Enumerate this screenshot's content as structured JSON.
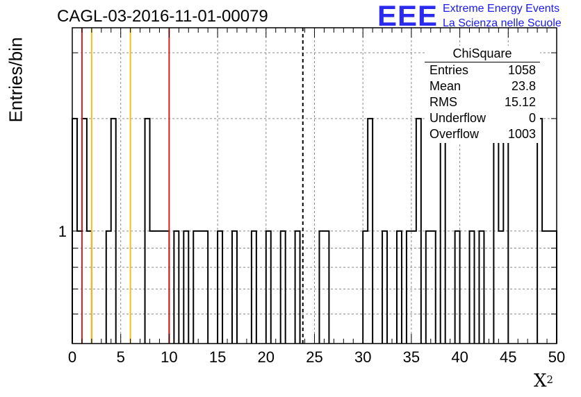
{
  "header": {
    "title": "CAGL-03-2016-11-01-00079",
    "logo_mark": "EEE",
    "logo_line1": "Extreme Energy Events",
    "logo_line2": "La Scienza nelle Scuole"
  },
  "stats": {
    "title": "ChiSquare",
    "rows": [
      {
        "label": "Entries",
        "value": "1058"
      },
      {
        "label": "Mean",
        "value": "23.8"
      },
      {
        "label": "RMS",
        "value": "15.12"
      },
      {
        "label": "Underflow",
        "value": "0"
      },
      {
        "label": "Overflow",
        "value": "1003"
      }
    ]
  },
  "colors": {
    "histogram": "#000000",
    "red_lines": "#d62020",
    "yellow_lines": "#f2c21b",
    "mean_line": "#000000",
    "logo": "#1a1af0"
  },
  "chart_data": {
    "type": "bar",
    "title": "CAGL-03-2016-11-01-00079",
    "xlabel": "X",
    "xlabel_superscript": "2",
    "ylabel": "Entries/bin",
    "xlim": [
      0,
      50
    ],
    "ylim": [
      0.5,
      3.5
    ],
    "log_y": true,
    "grid": true,
    "x_ticks": [
      "0",
      "5",
      "10",
      "15",
      "20",
      "25",
      "30",
      "35",
      "40",
      "45",
      "50"
    ],
    "y_ticks": [
      "1"
    ],
    "bin_width": 0.5,
    "bins": [
      {
        "x": 0.0,
        "v": 2
      },
      {
        "x": 0.5,
        "v": 1
      },
      {
        "x": 1.0,
        "v": 2
      },
      {
        "x": 1.5,
        "v": 1
      },
      {
        "x": 3.5,
        "v": 1
      },
      {
        "x": 4.0,
        "v": 2
      },
      {
        "x": 7.5,
        "v": 2
      },
      {
        "x": 8.0,
        "v": 1
      },
      {
        "x": 8.5,
        "v": 1
      },
      {
        "x": 9.0,
        "v": 1
      },
      {
        "x": 9.5,
        "v": 1
      },
      {
        "x": 10.5,
        "v": 1
      },
      {
        "x": 11.5,
        "v": 1
      },
      {
        "x": 12.5,
        "v": 1
      },
      {
        "x": 13.0,
        "v": 1
      },
      {
        "x": 13.5,
        "v": 1
      },
      {
        "x": 15.0,
        "v": 1
      },
      {
        "x": 16.5,
        "v": 1
      },
      {
        "x": 18.5,
        "v": 1
      },
      {
        "x": 20.0,
        "v": 1
      },
      {
        "x": 21.5,
        "v": 1
      },
      {
        "x": 23.0,
        "v": 1
      },
      {
        "x": 25.5,
        "v": 1
      },
      {
        "x": 26.0,
        "v": 1
      },
      {
        "x": 30.0,
        "v": 1
      },
      {
        "x": 30.5,
        "v": 2
      },
      {
        "x": 32.0,
        "v": 1
      },
      {
        "x": 33.5,
        "v": 1
      },
      {
        "x": 34.5,
        "v": 1
      },
      {
        "x": 35.0,
        "v": 1
      },
      {
        "x": 35.5,
        "v": 2
      },
      {
        "x": 36.5,
        "v": 1
      },
      {
        "x": 37.0,
        "v": 1
      },
      {
        "x": 38.0,
        "v": 2
      },
      {
        "x": 39.5,
        "v": 1
      },
      {
        "x": 41.0,
        "v": 1
      },
      {
        "x": 42.0,
        "v": 1
      },
      {
        "x": 43.5,
        "v": 3
      },
      {
        "x": 44.0,
        "v": 1
      },
      {
        "x": 44.5,
        "v": 2
      },
      {
        "x": 48.0,
        "v": 2
      },
      {
        "x": 48.5,
        "v": 1
      },
      {
        "x": 49.0,
        "v": 1
      },
      {
        "x": 49.5,
        "v": 1
      }
    ],
    "vertical_lines": [
      {
        "x": 1.0,
        "color": "red"
      },
      {
        "x": 10.0,
        "color": "red"
      },
      {
        "x": 2.0,
        "color": "yellow"
      },
      {
        "x": 6.0,
        "color": "yellow"
      },
      {
        "x": 23.8,
        "color": "black",
        "style": "dashed"
      }
    ]
  }
}
